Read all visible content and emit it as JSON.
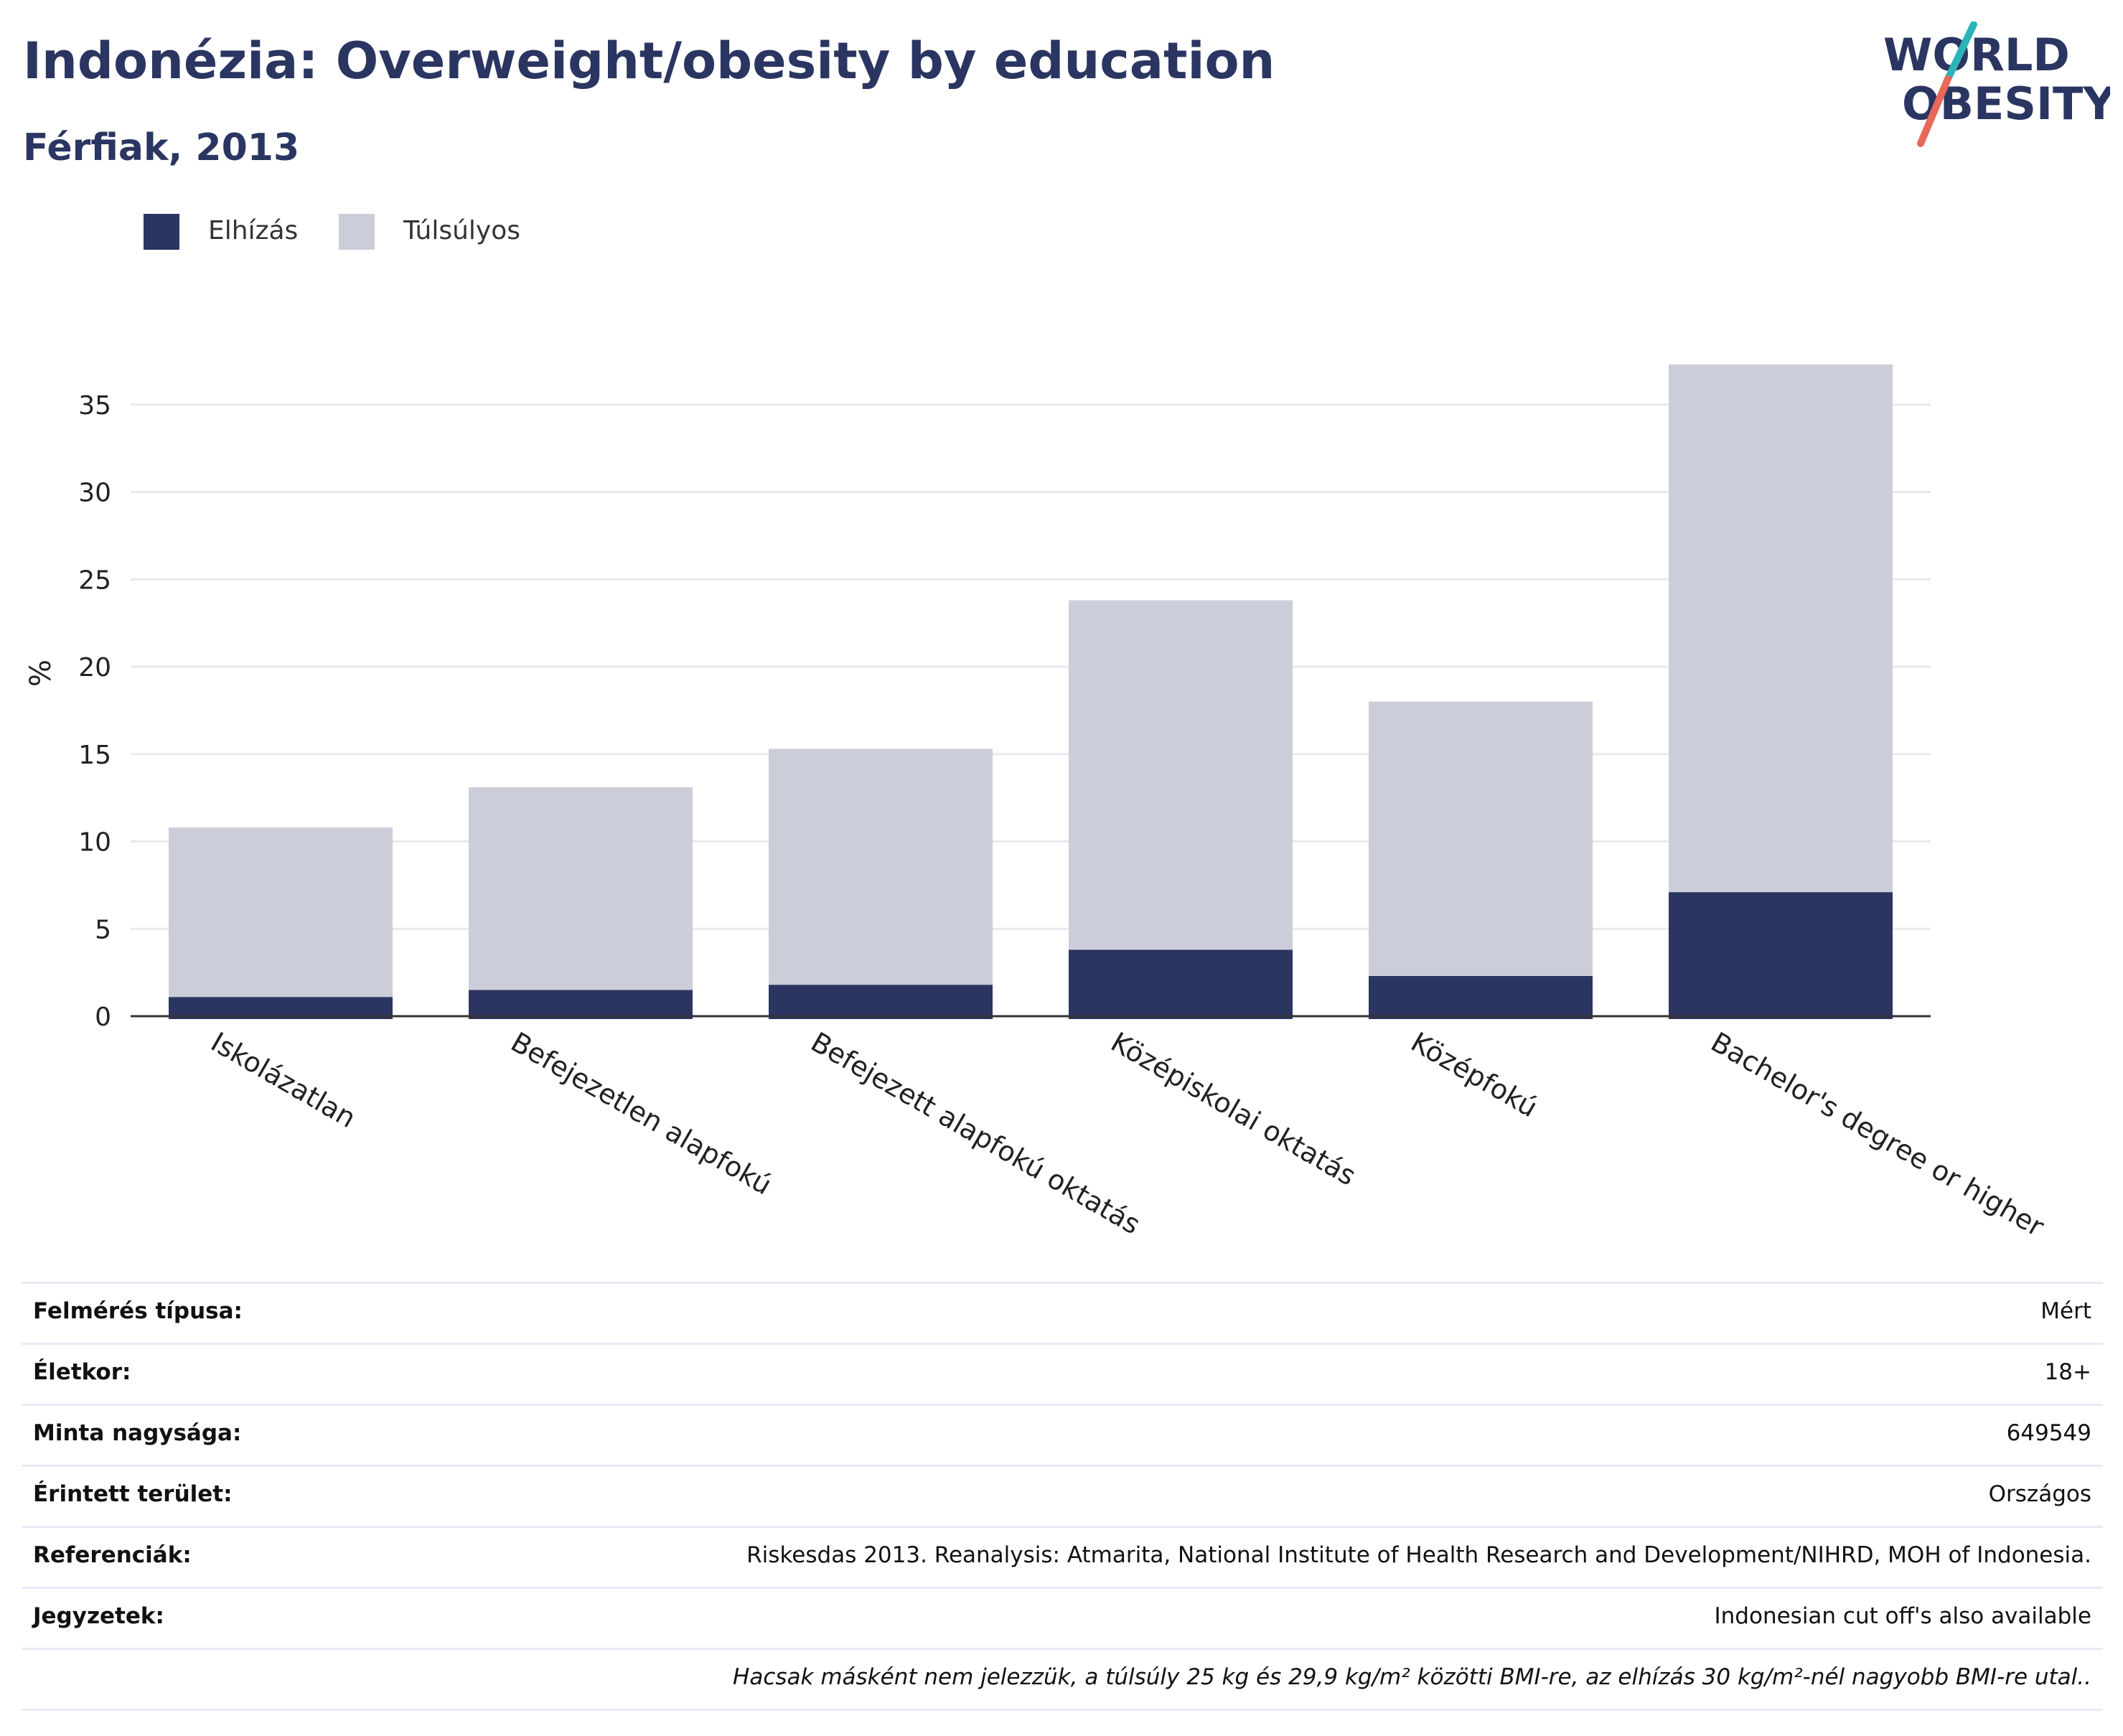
{
  "header": {
    "title": "Indonézia: Overweight/obesity by education",
    "subtitle": "Férfiak, 2013"
  },
  "logo": {
    "line1": "WORLD",
    "line2": "OBESITY",
    "colors": {
      "text": "#2b3561",
      "accent_teal": "#2bb5b8",
      "accent_red": "#e8685a"
    }
  },
  "legend": {
    "items": [
      {
        "label": "Elhízás",
        "color": "#2b3561"
      },
      {
        "label": "Túlsúlyos",
        "color": "#cbcdd9"
      }
    ]
  },
  "chart_data": {
    "type": "bar",
    "stacked": true,
    "categories": [
      "Iskolázatlan",
      "Befejezetlen alapfokú",
      "Befejezett alapfokú oktatás",
      "Középiskolai oktatás",
      "Középfokú",
      "Bachelor's degree or higher"
    ],
    "series": [
      {
        "name": "Elhízás",
        "color": "#2b3561",
        "values": [
          1.1,
          1.5,
          1.8,
          3.8,
          2.3,
          7.1
        ]
      },
      {
        "name": "Túlsúlyos",
        "color": "#cbcdd9",
        "values": [
          9.7,
          11.6,
          13.5,
          20.0,
          15.7,
          30.2
        ]
      }
    ],
    "ylabel": "%",
    "xlabel": "",
    "ylim": [
      0,
      37.5
    ],
    "yticks": [
      0,
      5,
      10,
      15,
      20,
      25,
      30,
      35
    ],
    "grid": true,
    "legend_position": "top-left"
  },
  "info_table": {
    "rows": [
      {
        "label": "Felmérés típusa:",
        "value": "Mért"
      },
      {
        "label": "Életkor:",
        "value": "18+"
      },
      {
        "label": "Minta nagysága:",
        "value": "649549"
      },
      {
        "label": "Érintett terület:",
        "value": "Országos"
      },
      {
        "label": "Referenciák:",
        "value": "Riskesdas 2013. Reanalysis: Atmarita, National Institute of Health Research and Development/NIHRD, MOH of Indonesia."
      },
      {
        "label": "Jegyzetek:",
        "value": "Indonesian cut off's also available"
      }
    ],
    "footnote": "Hacsak másként nem jelezzük, a túlsúly 25 kg és 29,9 kg/m² közötti BMI-re, az elhízás 30 kg/m²-nél nagyobb BMI-re utal.."
  }
}
